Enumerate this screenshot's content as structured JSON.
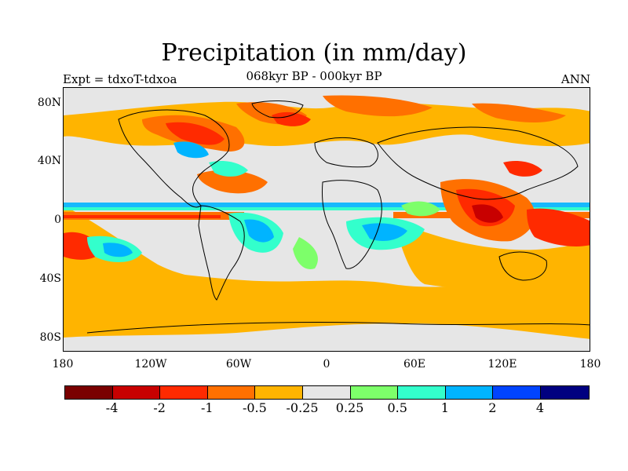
{
  "header": {
    "title": "Precipitation (in mm/day)",
    "left_label": "Expt = tdxoT-tdxoa",
    "center_label": "068kyr BP - 000kyr BP",
    "right_label": "ANN"
  },
  "axes": {
    "y_ticks": [
      "80N",
      "40N",
      "0",
      "40S",
      "80S"
    ],
    "x_ticks": [
      "180",
      "120W",
      "60W",
      "0",
      "60E",
      "120E",
      "180"
    ]
  },
  "colorbar": {
    "colors": [
      "#7a0000",
      "#c80000",
      "#ff2a00",
      "#ff7000",
      "#ffb400",
      "#e6e6e6",
      "#7dff6a",
      "#33ffcc",
      "#00b4ff",
      "#0044ff",
      "#000080"
    ],
    "labels": [
      "-4",
      "-2",
      "-1",
      "-0.5",
      "-0.25",
      "0.25",
      "0.5",
      "1",
      "2",
      "4"
    ]
  }
}
